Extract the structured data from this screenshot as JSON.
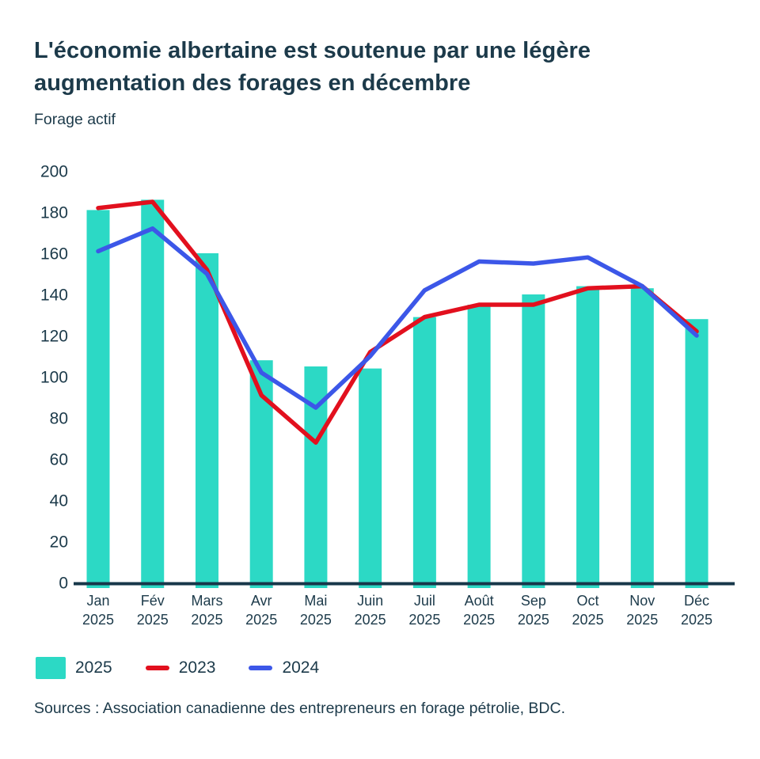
{
  "header": {
    "title": "L'économie albertaine est soutenue par une légère augmentation des forages en décembre",
    "subtitle": "Forage actif"
  },
  "chart_data": {
    "type": "bar",
    "title": "L'économie albertaine est soutenue par une légère augmentation des forages en décembre",
    "subtitle": "Forage actif",
    "categories": [
      "Jan",
      "Fév",
      "Mars",
      "Avr",
      "Mai",
      "Juin",
      "Juil",
      "Août",
      "Sep",
      "Oct",
      "Nov",
      "Déc"
    ],
    "category_year": "2025",
    "series": [
      {
        "name": "2025",
        "type": "bar",
        "color": "#2cd9c5",
        "values": [
          181,
          186,
          160,
          108,
          105,
          104,
          129,
          135,
          140,
          144,
          143,
          128
        ]
      },
      {
        "name": "2023",
        "type": "line",
        "color": "#e2101e",
        "values": [
          182,
          185,
          152,
          91,
          68,
          112,
          129,
          135,
          135,
          143,
          144,
          122
        ]
      },
      {
        "name": "2024",
        "type": "line",
        "color": "#3c57e8",
        "values": [
          161,
          172,
          150,
          102,
          85,
          110,
          142,
          156,
          155,
          158,
          144,
          120
        ]
      }
    ],
    "xlabel": "",
    "ylabel": "Forage actif",
    "ylim": [
      0,
      200
    ],
    "ytick_step": 20,
    "grid": false,
    "legend_position": "bottom-left"
  },
  "footer": {
    "source": "Sources : Association canadienne des entrepreneurs en forage pétrolie, BDC."
  },
  "colors": {
    "text": "#1c3a4a",
    "axis": "#17374a",
    "bar_2025": "#2cd9c5",
    "line_2023": "#e2101e",
    "line_2024": "#3c57e8",
    "background": "#ffffff"
  }
}
